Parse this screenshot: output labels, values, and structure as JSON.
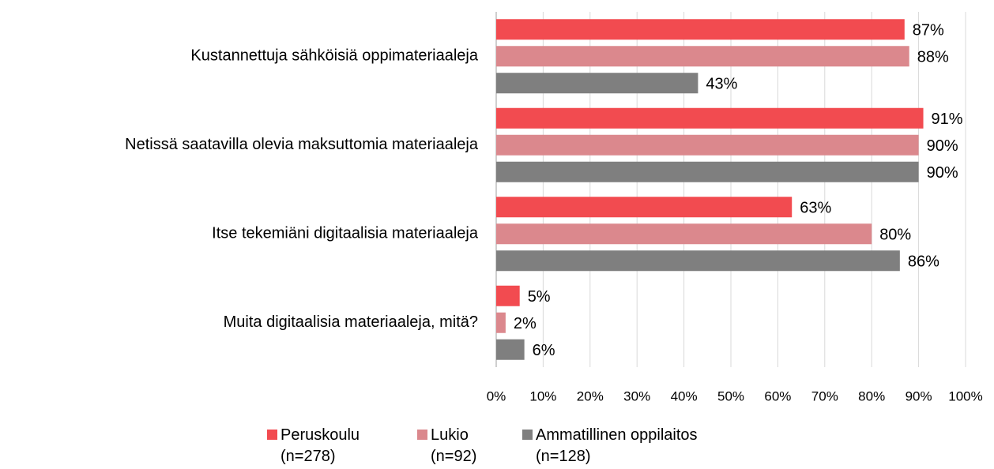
{
  "chart_data": {
    "type": "barh",
    "categories": [
      "Kustannettuja sähköisiä oppimateriaaleja",
      "Netissä saatavilla olevia maksuttomia materiaaleja",
      "Itse tekemiäni digitaalisia materiaaleja",
      "Muita digitaalisia materiaaleja, mitä?"
    ],
    "series": [
      {
        "name": "Peruskoulu (n=278)",
        "color": "#f24b50",
        "values": [
          87,
          91,
          63,
          5
        ],
        "value_labels": [
          "87%",
          "91%",
          "63%",
          "5%"
        ]
      },
      {
        "name": "Lukio (n=92)",
        "color": "#db888d",
        "values": [
          88,
          90,
          80,
          2
        ],
        "value_labels": [
          "88%",
          "90%",
          "80%",
          "2%"
        ]
      },
      {
        "name": "Ammatillinen oppilaitos (n=128)",
        "color": "#7f7f7f",
        "values": [
          43,
          90,
          86,
          6
        ],
        "value_labels": [
          "43%",
          "90%",
          "86%",
          "6%"
        ]
      }
    ],
    "xlim": [
      0,
      100
    ],
    "xticks": [
      {
        "value": 0,
        "label": "0%"
      },
      {
        "value": 10,
        "label": "10%"
      },
      {
        "value": 20,
        "label": "20%"
      },
      {
        "value": 30,
        "label": "30%"
      },
      {
        "value": 40,
        "label": "40%"
      },
      {
        "value": 50,
        "label": "50%"
      },
      {
        "value": 60,
        "label": "60%"
      },
      {
        "value": 70,
        "label": "70%"
      },
      {
        "value": 80,
        "label": "80%"
      },
      {
        "value": 90,
        "label": "90%"
      },
      {
        "value": 100,
        "label": "100%"
      }
    ],
    "grid": true,
    "legend": "bottom"
  }
}
